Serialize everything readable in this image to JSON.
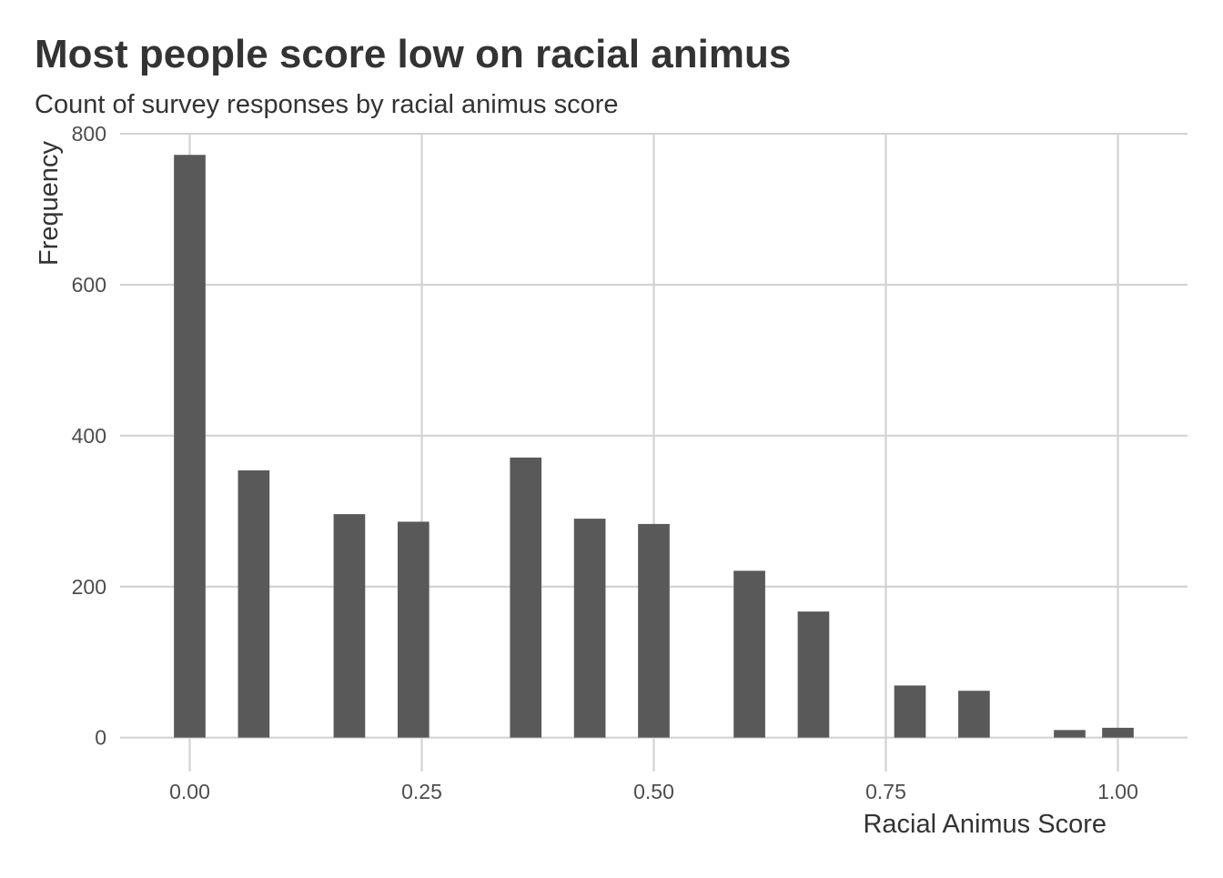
{
  "chart_data": {
    "type": "bar",
    "title": "Most people score low on racial animus",
    "subtitle": "Count of survey responses by racial animus score",
    "xlabel": "Racial Animus Score",
    "ylabel": "Frequency",
    "xlim": [
      -0.075,
      1.075
    ],
    "ylim": [
      -45,
      800
    ],
    "xticks": [
      0,
      0.25,
      0.5,
      0.75,
      1
    ],
    "xtick_labels": [
      "0.00",
      "0.25",
      "0.50",
      "0.75",
      "1.00"
    ],
    "yticks": [
      0,
      200,
      400,
      600,
      800
    ],
    "ytick_labels": [
      "0",
      "200",
      "400",
      "600",
      "800"
    ],
    "bar_width": 0.034,
    "x": [
      0.0,
      0.069,
      0.172,
      0.241,
      0.362,
      0.431,
      0.5,
      0.603,
      0.672,
      0.776,
      0.845,
      0.948,
      1.0
    ],
    "values": [
      772,
      354,
      296,
      286,
      371,
      290,
      283,
      221,
      167,
      69,
      62,
      10,
      13
    ],
    "grid": true,
    "colors": {
      "bar": "#595959",
      "grid": "#d3d3d3",
      "text": "#333333",
      "tick_text": "#4d4d4d"
    }
  }
}
